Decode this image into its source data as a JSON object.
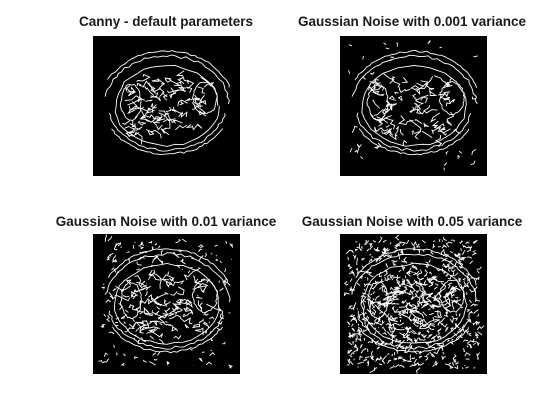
{
  "figure": {
    "panels": [
      {
        "title": "Canny - default parameters",
        "content": "edge map",
        "noise": "none"
      },
      {
        "title": "Gaussian Noise with 0.001 variance",
        "content": "edge map",
        "noise": "low"
      },
      {
        "title": "Gaussian Noise with 0.01 variance",
        "content": "edge map",
        "noise": "medium"
      },
      {
        "title": "Gaussian Noise with 0.05 variance",
        "content": "edge map",
        "noise": "high"
      }
    ],
    "colors": {
      "background": "#ffffff",
      "image_background": "#000000",
      "edge": "#ffffff",
      "title": "#1a1a1a"
    }
  }
}
